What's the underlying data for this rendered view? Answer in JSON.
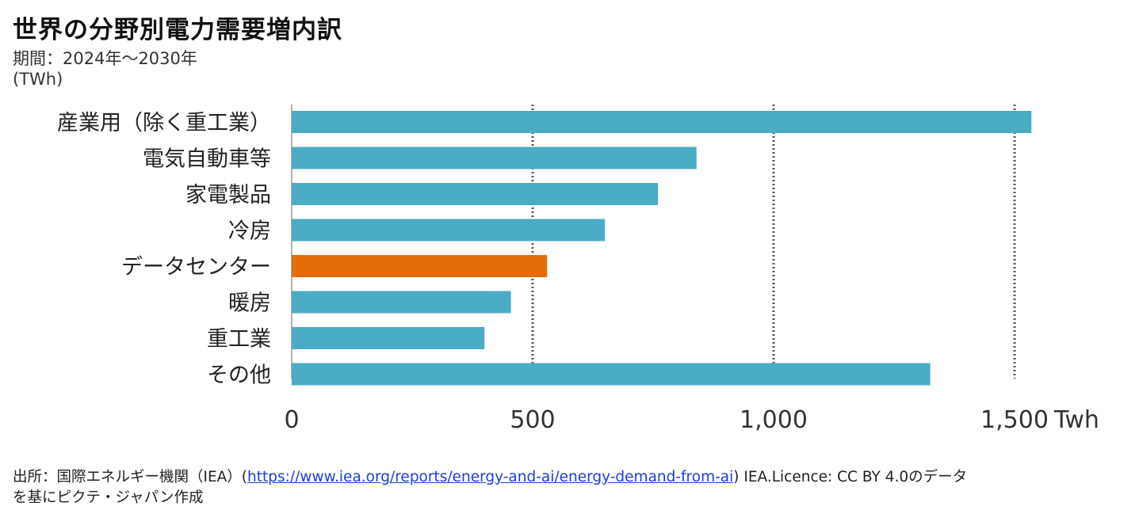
{
  "title": "世界の分野別電力需要増内訳",
  "subtitle": "期間：2024年～2030年",
  "unit": "(TWh)",
  "source": {
    "prefix": "出所：国際エネルギー機関（IEA）(",
    "url": "https://www.iea.org/reports/energy-and-ai/energy-demand-from-ai",
    "suffix": ") IEA.Licence: CC BY 4.0のデータ",
    "line2": "を基にピクテ・ジャパン作成"
  },
  "chart_data": {
    "type": "bar",
    "orientation": "horizontal",
    "categories": [
      "産業用（除く重工業）",
      "電気自動車等",
      "家電製品",
      "冷房",
      "データセンター",
      "暖房",
      "重工業",
      "その他"
    ],
    "values": [
      1535,
      840,
      760,
      650,
      530,
      455,
      400,
      1325
    ],
    "highlight_index": 4,
    "xlim": [
      0,
      1500
    ],
    "x_ticks": [
      0,
      500,
      1000,
      1500
    ],
    "x_tick_labels": [
      "0",
      "500",
      "1,000",
      "1,500"
    ],
    "x_unit": "Twh",
    "grid": "dotted vertical",
    "colors": {
      "bar": "#4bacc6",
      "highlight": "#e46c0a",
      "grid": "#555555",
      "axis": "#999999"
    }
  }
}
